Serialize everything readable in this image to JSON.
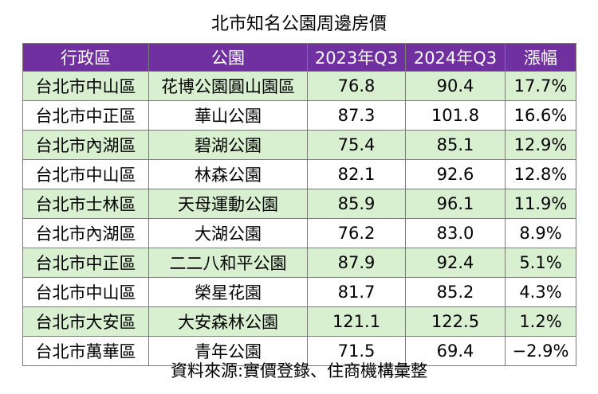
{
  "title": "北市知名公園周邊房價",
  "headers": [
    "行政區",
    "公園",
    "2023年Q3",
    "2024年Q3",
    "漲幅"
  ],
  "rows": [
    [
      "台北市中山區",
      "花博公園圓山園區",
      "76.8",
      "90.4",
      "17.7%"
    ],
    [
      "台北市中正區",
      "華山公園",
      "87.3",
      "101.8",
      "16.6%"
    ],
    [
      "台北市內湖區",
      "碧湖公園",
      "75.4",
      "85.1",
      "12.9%"
    ],
    [
      "台北市中山區",
      "林森公園",
      "82.1",
      "92.6",
      "12.8%"
    ],
    [
      "台北市士林區",
      "天母運動公園",
      "85.9",
      "96.1",
      "11.9%"
    ],
    [
      "台北市內湖區",
      "大湖公園",
      "76.2",
      "83.0",
      "8.9%"
    ],
    [
      "台北市中正區",
      "二二八和平公園",
      "87.9",
      "92.4",
      "5.1%"
    ],
    [
      "台北市中山區",
      "榮星花園",
      "81.7",
      "85.2",
      "4.3%"
    ],
    [
      "台北市大安區",
      "大安森林公園",
      "121.1",
      "122.5",
      "1.2%"
    ],
    [
      "台北市萬華區",
      "青年公園",
      "71.5",
      "69.4",
      "−2.9%"
    ]
  ],
  "footer": "資料來源:實價登錄、住商機構彙整",
  "colors": {
    "header_bg": "#7030a0",
    "alt_row_bg": "#d8f0cf"
  }
}
